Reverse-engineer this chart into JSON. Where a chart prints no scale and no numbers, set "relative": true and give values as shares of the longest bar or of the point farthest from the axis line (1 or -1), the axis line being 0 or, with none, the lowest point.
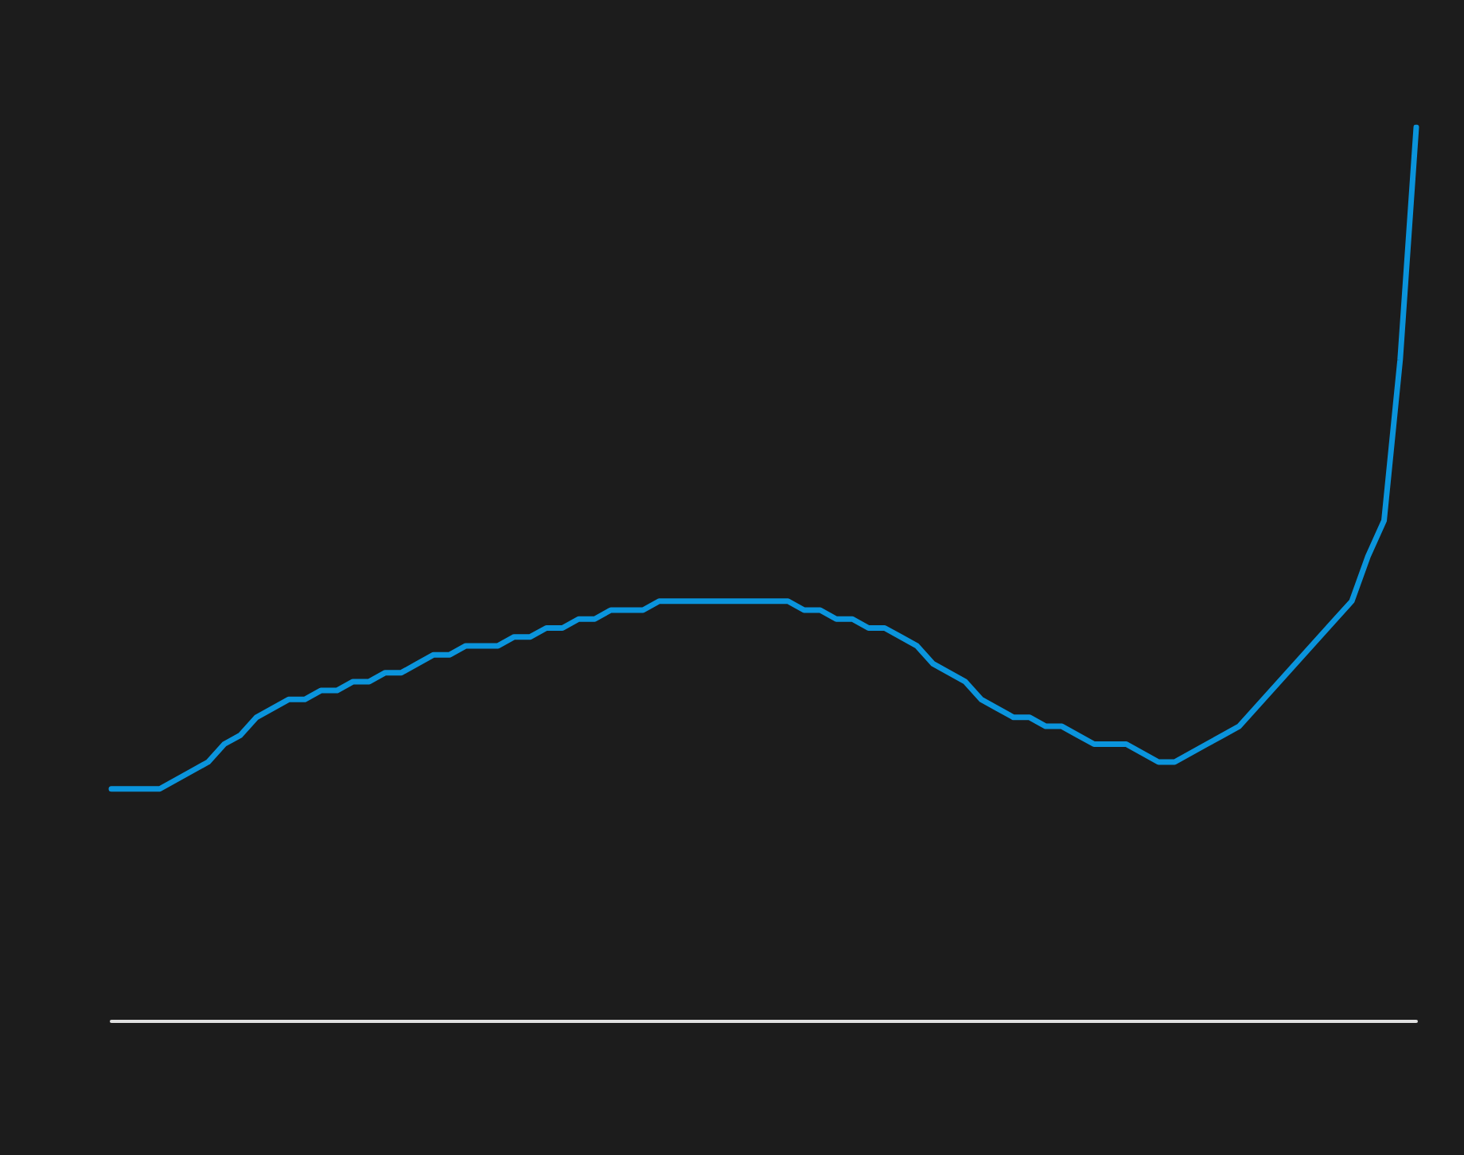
{
  "chart_data": {
    "type": "line",
    "relative": true,
    "color": "#0a94dc",
    "marker": "none",
    "line_style": "solid",
    "grid": false,
    "categories": [
      null,
      null,
      null,
      null,
      null,
      null,
      null,
      null,
      null,
      null,
      null,
      null,
      null,
      null,
      null,
      null,
      null,
      null,
      null,
      null,
      null,
      null,
      null,
      null,
      null,
      null,
      null,
      null,
      null,
      null,
      null,
      null,
      null,
      null,
      null,
      null,
      null,
      null,
      null,
      null,
      null,
      null,
      null,
      null,
      null,
      null,
      null,
      null,
      null,
      null,
      null,
      null,
      null,
      null,
      null,
      null,
      null,
      null,
      null,
      null,
      null,
      null,
      null,
      null,
      null,
      null,
      null,
      null,
      null,
      null,
      null,
      null,
      null,
      null,
      null,
      null,
      null,
      null,
      null,
      null,
      null,
      null
    ],
    "values": [
      0.26,
      0.26,
      0.26,
      0.26,
      0.27,
      0.28,
      0.29,
      0.31,
      0.32,
      0.34,
      0.35,
      0.36,
      0.36,
      0.37,
      0.37,
      0.38,
      0.38,
      0.39,
      0.39,
      0.4,
      0.41,
      0.41,
      0.42,
      0.42,
      0.42,
      0.43,
      0.43,
      0.44,
      0.44,
      0.45,
      0.45,
      0.46,
      0.46,
      0.46,
      0.47,
      0.47,
      0.47,
      0.47,
      0.47,
      0.47,
      0.47,
      0.47,
      0.47,
      0.46,
      0.46,
      0.45,
      0.45,
      0.44,
      0.44,
      0.43,
      0.42,
      0.4,
      0.39,
      0.38,
      0.36,
      0.35,
      0.34,
      0.34,
      0.33,
      0.33,
      0.32,
      0.31,
      0.31,
      0.31,
      0.3,
      0.29,
      0.29,
      0.3,
      0.31,
      0.32,
      0.33,
      0.35,
      0.37,
      0.39,
      0.41,
      0.43,
      0.45,
      0.47,
      0.52,
      0.56,
      0.74,
      1.0
    ]
  }
}
